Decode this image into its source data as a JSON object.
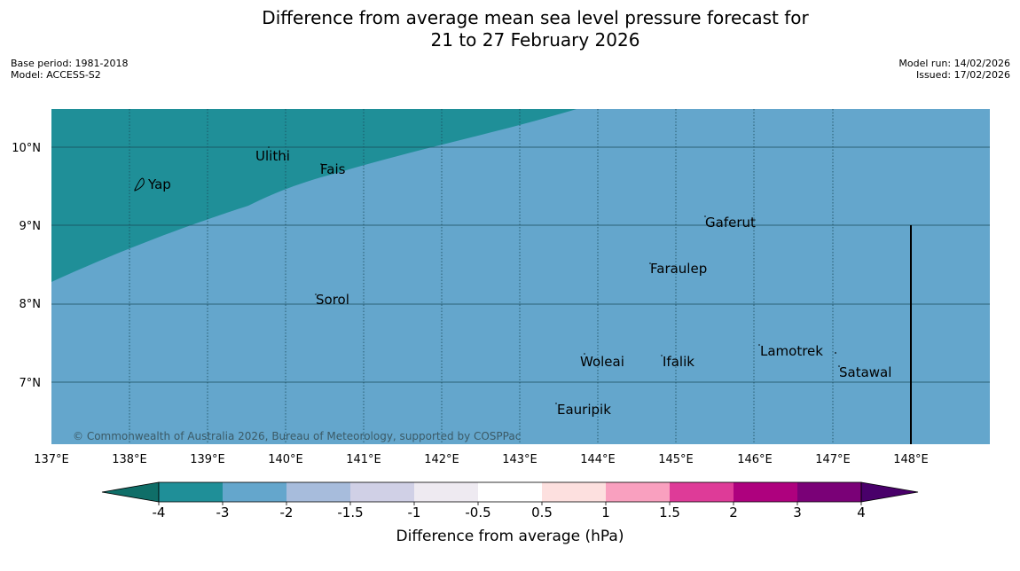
{
  "title": {
    "line1": "Difference from average mean sea level pressure forecast for",
    "line2": "21 to 27 February 2026"
  },
  "meta": {
    "base_period": "Base period: 1981-2018",
    "model": "Model: ACCESS-S2",
    "model_run": "Model run: 14/02/2026",
    "issued": "Issued: 17/02/2026"
  },
  "map": {
    "lon_labels": [
      "137°E",
      "138°E",
      "139°E",
      "140°E",
      "141°E",
      "142°E",
      "143°E",
      "144°E",
      "145°E",
      "146°E",
      "147°E",
      "148°E"
    ],
    "lat_labels": [
      "10°N",
      "9°N",
      "8°N",
      "7°N"
    ],
    "places": [
      "Yap",
      "Ulithi",
      "Fais",
      "Gaferut",
      "Faraulep",
      "Sorol",
      "Woleai",
      "Ifalik",
      "Lamotrek",
      "Satawal",
      "Eauripik"
    ],
    "copyright": "© Commonwealth of Australia 2026, Bureau of Meteorology, supported by COSPPac",
    "region_colors": {
      "below_minus3": "#1f8f98",
      "minus3_to_minus2": "#64a6cc"
    }
  },
  "colorbar": {
    "colors": [
      "#0f6e68",
      "#1f8f98",
      "#64a6cc",
      "#a7bcdc",
      "#d0d0e6",
      "#eeeaf1",
      "#ffffff",
      "#fde0df",
      "#f9a0bf",
      "#de3b98",
      "#ae017e",
      "#7a0177",
      "#49006a"
    ],
    "ticks": [
      "-4",
      "-3",
      "-2",
      "-1.5",
      "-1",
      "-0.5",
      "0.5",
      "1",
      "1.5",
      "2",
      "3",
      "4"
    ],
    "label": "Difference from average (hPa)"
  }
}
